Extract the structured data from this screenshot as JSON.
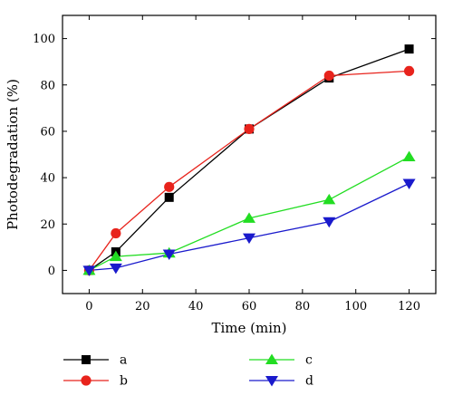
{
  "chart_data": {
    "type": "line",
    "title": "",
    "xlabel": "Time (min)",
    "ylabel": "Photodegradation (%)",
    "xlim": [
      -10,
      130
    ],
    "ylim": [
      -10,
      110
    ],
    "xticks": [
      "0",
      "20",
      "40",
      "60",
      "80",
      "100",
      "120"
    ],
    "yticks": [
      "0",
      "20",
      "40",
      "60",
      "80",
      "100"
    ],
    "grid": false,
    "legend_position": "bottom",
    "x": [
      0,
      10,
      30,
      60,
      90,
      120
    ],
    "series": [
      {
        "name": "a",
        "color": "#000000",
        "marker": "square",
        "values": [
          0,
          8,
          31.5,
          61,
          83,
          95.5
        ]
      },
      {
        "name": "b",
        "color": "#e8231c",
        "marker": "circle",
        "values": [
          0,
          16,
          36,
          61,
          84,
          86
        ]
      },
      {
        "name": "c",
        "color": "#22dd22",
        "marker": "triangle-up",
        "values": [
          0,
          6,
          7.5,
          22.5,
          30.5,
          49
        ]
      },
      {
        "name": "d",
        "color": "#1a1acc",
        "marker": "triangle-down",
        "values": [
          0,
          1,
          7,
          14,
          21,
          37.5
        ]
      }
    ]
  }
}
